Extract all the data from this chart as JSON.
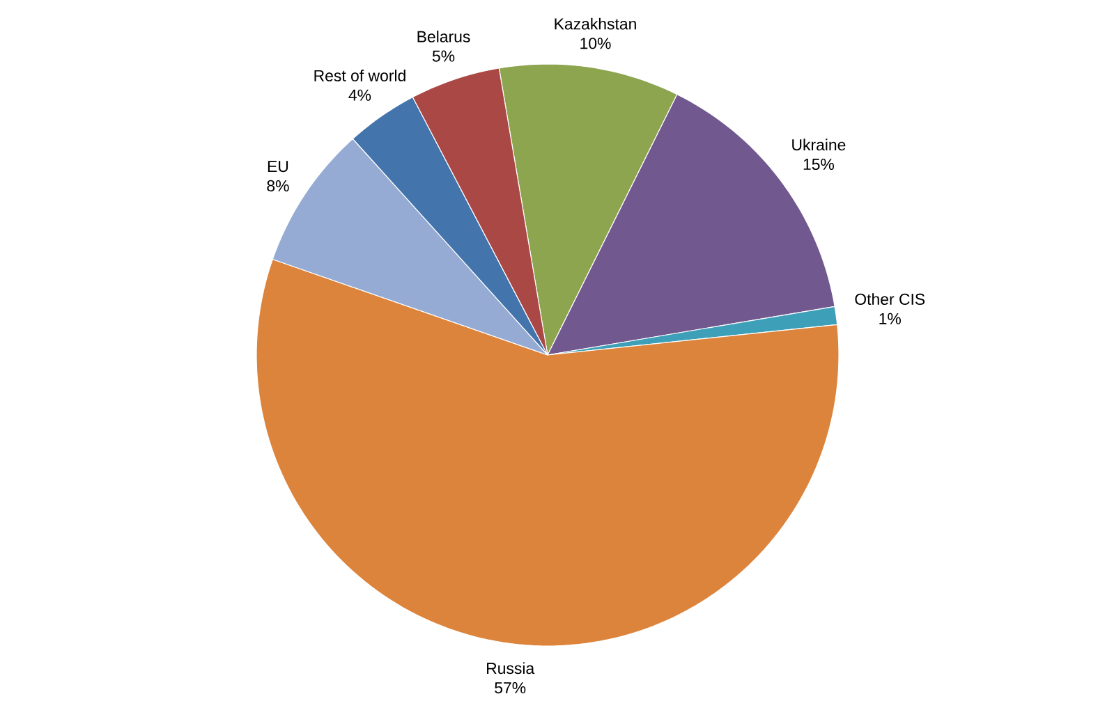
{
  "chart_data": {
    "type": "pie",
    "categories": [
      "Kazakhstan",
      "Ukraine",
      "Other CIS",
      "Russia",
      "EU",
      "Rest of world",
      "Belarus"
    ],
    "values": [
      10,
      15,
      1,
      57,
      8,
      4,
      5
    ],
    "value_labels": [
      "10%",
      "15%",
      "1%",
      "57%",
      "8%",
      "4%",
      "5%"
    ],
    "colors": [
      "#8ca54e",
      "#71588f",
      "#3ea0b8",
      "#dd843c",
      "#95abd4",
      "#4374ab",
      "#aa4845"
    ]
  }
}
